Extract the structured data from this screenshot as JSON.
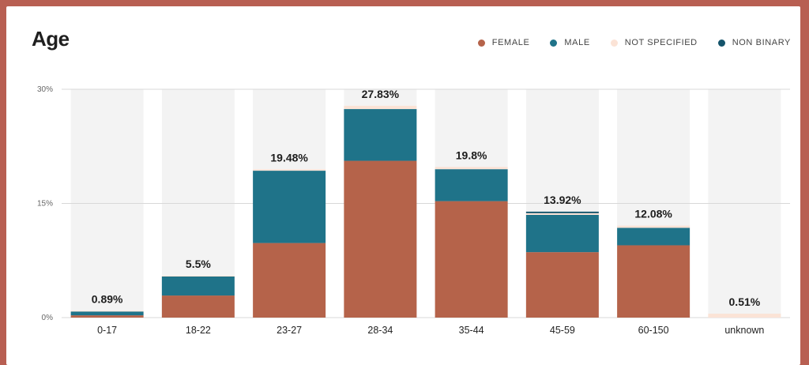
{
  "chart_data": {
    "type": "bar",
    "stacked": true,
    "title": "Age",
    "xlabel": "",
    "ylabel": "",
    "ylim": [
      0,
      30
    ],
    "yticks": [
      "0%",
      "15%",
      "30%"
    ],
    "ytick_values": [
      0,
      15,
      30
    ],
    "grid": true,
    "legend_position": "top-right",
    "categories": [
      "0-17",
      "18-22",
      "23-27",
      "28-34",
      "35-44",
      "45-59",
      "60-150",
      "unknown"
    ],
    "totals_labels": [
      "0.89%",
      "5.5%",
      "19.48%",
      "27.83%",
      "19.8%",
      "13.92%",
      "12.08%",
      "0.51%"
    ],
    "series": [
      {
        "name": "FEMALE",
        "color": "#b5634a",
        "values": [
          0.3,
          2.9,
          9.8,
          20.6,
          15.3,
          8.6,
          9.5,
          0
        ]
      },
      {
        "name": "MALE",
        "color": "#1f7389",
        "values": [
          0.5,
          2.5,
          9.5,
          6.8,
          4.2,
          4.9,
          2.3,
          0
        ]
      },
      {
        "name": "NOT SPECIFIED",
        "color": "#fbe3d6",
        "values": [
          0.09,
          0.1,
          0.18,
          0.43,
          0.3,
          0.22,
          0.28,
          0.51
        ]
      },
      {
        "name": "NON BINARY",
        "color": "#14546b",
        "values": [
          0,
          0,
          0,
          0,
          0,
          0.2,
          0,
          0
        ]
      }
    ]
  }
}
